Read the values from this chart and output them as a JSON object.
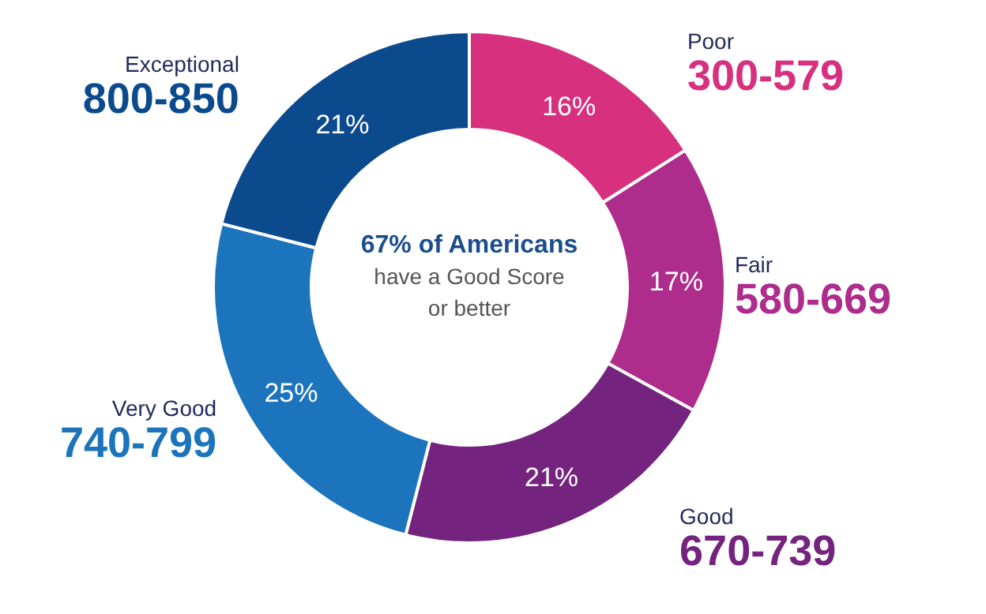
{
  "chart_data": {
    "type": "donut",
    "categories": [
      "Poor\n300-579",
      "Fair\n580-669",
      "Good\n670-739",
      "Very Good\n740-799",
      "Exceptional\n800-850"
    ],
    "values": [
      16,
      17,
      21,
      25,
      21
    ],
    "colors": [
      "#d6307f",
      "#ad2c8c",
      "#74237e",
      "#1b74bc",
      "#0c4a8e"
    ],
    "value_labels": [
      "16%",
      "17%",
      "21%",
      "25%",
      "21%"
    ],
    "annotations": [
      "67% of Americans",
      "have a Good Score",
      "or better"
    ]
  }
}
